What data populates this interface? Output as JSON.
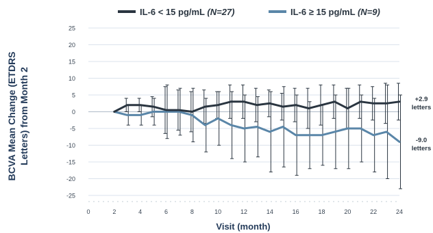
{
  "chart_data": {
    "type": "line",
    "title": "",
    "xlabel": "Visit (month)",
    "ylabel_lines": [
      "BCVA Mean Change (ETDRS",
      "Letters) from Month 2"
    ],
    "xlim": [
      0,
      24
    ],
    "ylim": [
      -25,
      25
    ],
    "x_ticks": [
      0,
      2,
      4,
      6,
      8,
      10,
      12,
      14,
      16,
      18,
      20,
      22,
      24
    ],
    "y_ticks": [
      25,
      20,
      15,
      10,
      5,
      0,
      -5,
      -10,
      -15,
      -20,
      -25
    ],
    "grid": true,
    "legend_position": "top",
    "x": [
      2,
      3,
      4,
      5,
      6,
      7,
      8,
      9,
      10,
      11,
      12,
      13,
      14,
      15,
      16,
      17,
      18,
      19,
      20,
      21,
      22,
      23,
      24
    ],
    "series": [
      {
        "name": "IL-6 < 15 pg/mL",
        "n_label": "(N=27)",
        "color": "#2a3540",
        "values": [
          0,
          2,
          2,
          1.5,
          0.5,
          0.5,
          0,
          1.5,
          2,
          3,
          3,
          2,
          2.5,
          1.5,
          2,
          1,
          2,
          3,
          1,
          3,
          2.5,
          2.5,
          3
        ],
        "error": [
          0,
          2,
          2,
          3,
          7,
          6,
          6,
          5,
          4,
          5,
          5,
          5,
          4,
          4,
          5,
          6,
          6,
          5,
          6,
          5,
          5,
          6,
          5.5
        ],
        "end_label": [
          "+2.9",
          "letters"
        ]
      },
      {
        "name": "IL-6 ≥ 15 pg/mL",
        "n_label": "(N=9)",
        "color": "#5a86a8",
        "values": [
          0,
          -1,
          -1,
          0,
          0,
          0,
          -1,
          -4,
          -2,
          -4,
          -5,
          -4.5,
          -6,
          -4.5,
          -7,
          -7,
          -7,
          -6,
          -5,
          -5,
          -7,
          -6,
          -9
        ],
        "error": [
          0,
          3,
          3,
          4,
          8,
          7,
          8,
          8,
          8,
          10,
          10,
          9,
          12,
          12,
          12,
          10,
          9,
          11,
          12,
          10,
          11,
          14,
          14
        ],
        "end_label": [
          "-9.0",
          "letters"
        ]
      }
    ]
  }
}
